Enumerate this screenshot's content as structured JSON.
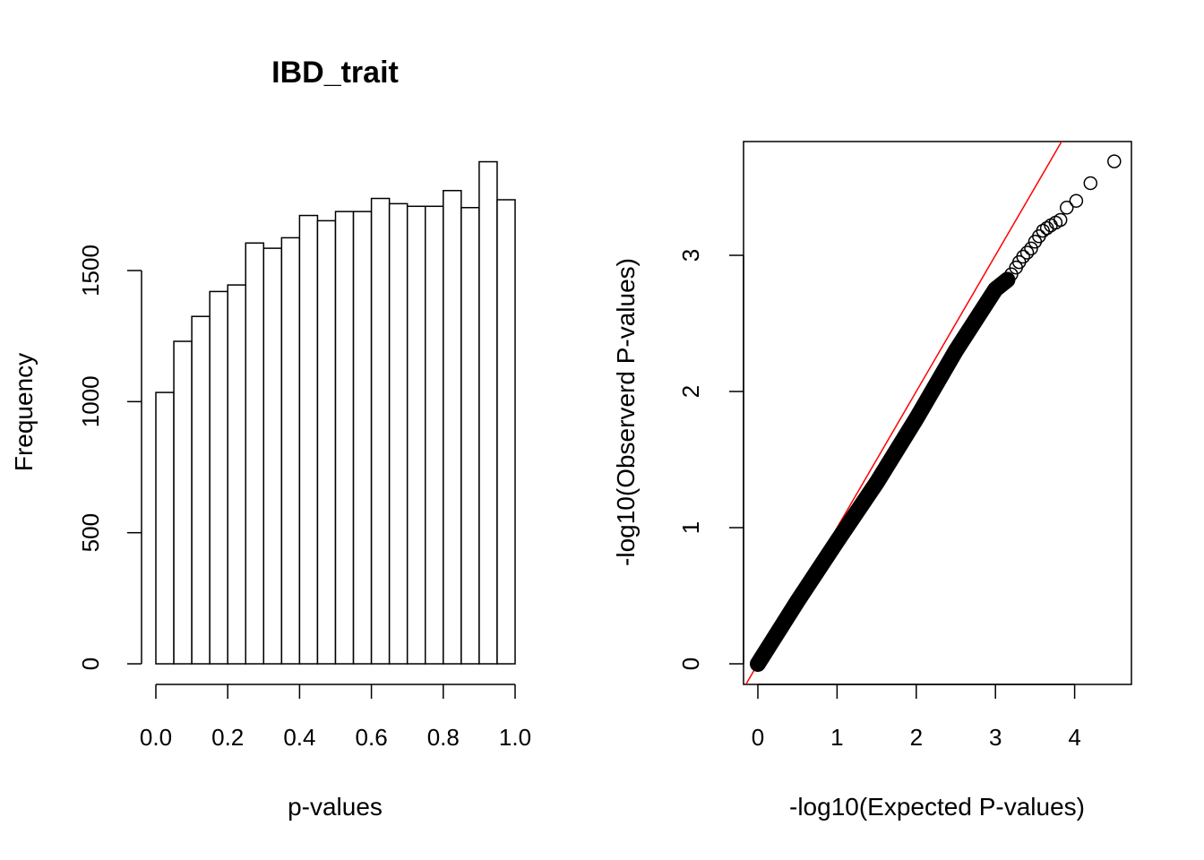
{
  "chart_data": [
    {
      "type": "bar",
      "title": "IBD_trait",
      "xlabel": "p-values",
      "ylabel": "Frequency",
      "bin_width": 0.05,
      "categories": [
        "0.00-0.05",
        "0.05-0.10",
        "0.10-0.15",
        "0.15-0.20",
        "0.20-0.25",
        "0.25-0.30",
        "0.30-0.35",
        "0.35-0.40",
        "0.40-0.45",
        "0.45-0.50",
        "0.50-0.55",
        "0.55-0.60",
        "0.60-0.65",
        "0.65-0.70",
        "0.70-0.75",
        "0.75-0.80",
        "0.80-0.85",
        "0.85-0.90",
        "0.90-0.95",
        "0.95-1.00"
      ],
      "values": [
        1035,
        1230,
        1325,
        1420,
        1445,
        1605,
        1585,
        1625,
        1710,
        1690,
        1725,
        1725,
        1775,
        1755,
        1745,
        1745,
        1805,
        1740,
        1915,
        1770
      ],
      "xlim": [
        0,
        1
      ],
      "ylim": [
        0,
        2000
      ],
      "x_ticks": [
        "0.0",
        "0.2",
        "0.4",
        "0.6",
        "0.8",
        "1.0"
      ],
      "y_ticks": [
        "0",
        "500",
        "1000",
        "1500"
      ],
      "bar_fill": "#ffffff",
      "bar_stroke": "#000000"
    },
    {
      "type": "scatter",
      "xlabel": "-log10(Expected P-values)",
      "ylabel": "-log10(Observerd P-values)",
      "xlim": [
        -0.18,
        4.73
      ],
      "ylim": [
        -0.14,
        3.83
      ],
      "x_ticks": [
        "0",
        "1",
        "2",
        "3",
        "4"
      ],
      "y_ticks": [
        "0",
        "1",
        "2",
        "3"
      ],
      "reference_line": {
        "slope": 1,
        "intercept": 0,
        "color": "#ff0000"
      },
      "dense_trend": [
        [
          0.0,
          0.0
        ],
        [
          0.5,
          0.46
        ],
        [
          1.0,
          0.9
        ],
        [
          1.5,
          1.33
        ],
        [
          2.0,
          1.8
        ],
        [
          2.5,
          2.3
        ],
        [
          3.0,
          2.75
        ],
        [
          3.15,
          2.82
        ]
      ],
      "points": [
        [
          3.2,
          2.86
        ],
        [
          3.26,
          2.91
        ],
        [
          3.3,
          2.95
        ],
        [
          3.35,
          2.99
        ],
        [
          3.4,
          3.02
        ],
        [
          3.45,
          3.05
        ],
        [
          3.5,
          3.1
        ],
        [
          3.55,
          3.14
        ],
        [
          3.6,
          3.18
        ],
        [
          3.65,
          3.2
        ],
        [
          3.7,
          3.22
        ],
        [
          3.76,
          3.24
        ],
        [
          3.82,
          3.26
        ],
        [
          3.9,
          3.35
        ],
        [
          4.02,
          3.4
        ],
        [
          4.2,
          3.53
        ],
        [
          4.5,
          3.69
        ]
      ],
      "point_stroke": "#000000"
    }
  ]
}
